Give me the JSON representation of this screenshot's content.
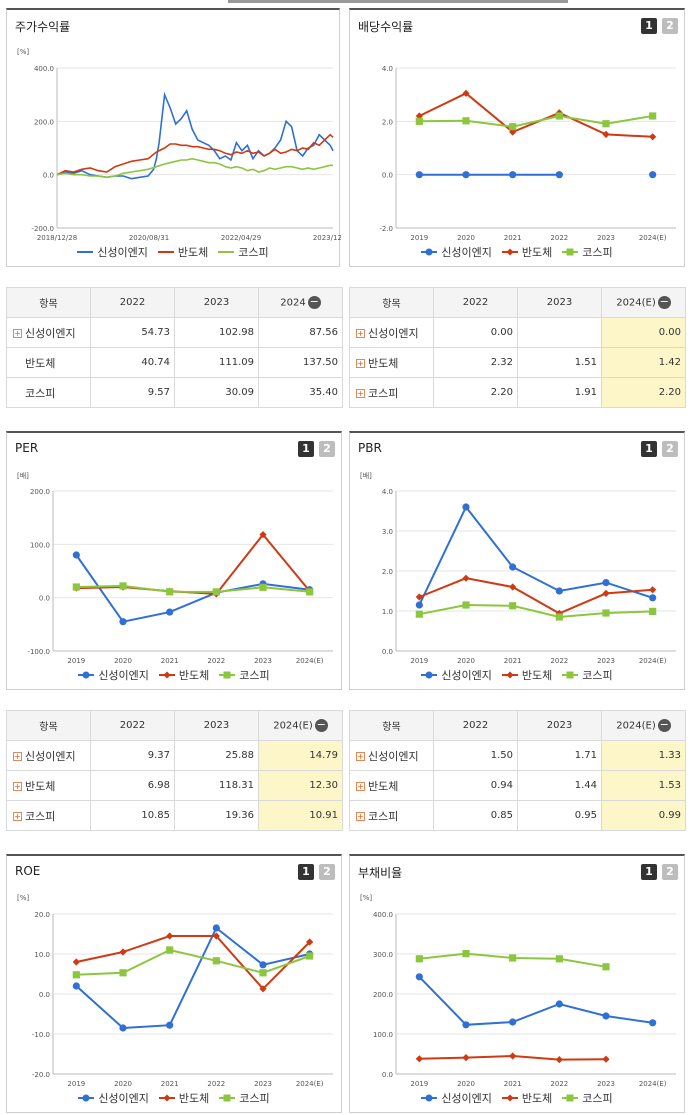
{
  "colors": {
    "blue": "#2f6fd6",
    "red": "#cf3a12",
    "green": "#8cc63f",
    "grid": "#e6e6e6"
  },
  "legend": [
    "신성이엔지",
    "반도체",
    "코스피"
  ],
  "panels": {
    "stock": {
      "title": "주가수익률",
      "tabs": [],
      "unit": "[%]",
      "chart_data": {
        "type": "line",
        "title": "주가수익률",
        "x_tick_labels": [
          "2018/12/28",
          "2020/08/31",
          "2022/04/29",
          "2023/12/28"
        ],
        "y_ticks": [
          "400.0",
          "200.0",
          "0.0",
          "-200.0"
        ],
        "ylim": [
          -200,
          400
        ],
        "x_index_range": [
          0,
          100
        ],
        "series": [
          {
            "name": "신성이엔지",
            "x": [
              0,
              3,
              6,
              9,
              12,
              15,
              18,
              21,
              24,
              27,
              30,
              33,
              35,
              36,
              37,
              39,
              41,
              43,
              45,
              47,
              49,
              51,
              53,
              55,
              57,
              59,
              61,
              63,
              65,
              67,
              69,
              71,
              73,
              75,
              77,
              79,
              81,
              83,
              85,
              87,
              89,
              91,
              93,
              95,
              97,
              99,
              100
            ],
            "y": [
              0,
              10,
              5,
              15,
              0,
              -5,
              -10,
              -5,
              -5,
              -15,
              -10,
              -5,
              20,
              60,
              120,
              300,
              250,
              190,
              210,
              240,
              170,
              130,
              120,
              110,
              90,
              60,
              70,
              55,
              120,
              90,
              110,
              60,
              90,
              70,
              80,
              100,
              130,
              200,
              180,
              90,
              70,
              100,
              110,
              150,
              130,
              110,
              90
            ]
          },
          {
            "name": "반도체",
            "x": [
              0,
              3,
              6,
              9,
              12,
              15,
              18,
              21,
              24,
              27,
              30,
              33,
              36,
              39,
              41,
              43,
              45,
              47,
              49,
              51,
              53,
              55,
              57,
              59,
              61,
              63,
              65,
              67,
              69,
              71,
              73,
              75,
              77,
              79,
              81,
              83,
              85,
              87,
              89,
              91,
              93,
              95,
              97,
              99,
              100
            ],
            "y": [
              0,
              15,
              10,
              20,
              25,
              15,
              10,
              30,
              40,
              50,
              55,
              60,
              85,
              100,
              115,
              115,
              110,
              110,
              105,
              105,
              100,
              95,
              95,
              90,
              80,
              75,
              85,
              80,
              90,
              80,
              85,
              70,
              80,
              95,
              80,
              85,
              95,
              90,
              100,
              95,
              120,
              110,
              130,
              150,
              140
            ]
          },
          {
            "name": "코스피",
            "x": [
              0,
              3,
              6,
              9,
              12,
              15,
              18,
              21,
              24,
              27,
              30,
              33,
              36,
              39,
              41,
              43,
              45,
              47,
              49,
              51,
              53,
              55,
              57,
              59,
              61,
              63,
              65,
              67,
              69,
              71,
              73,
              75,
              77,
              79,
              81,
              83,
              85,
              87,
              89,
              91,
              93,
              95,
              97,
              99,
              100
            ],
            "y": [
              0,
              5,
              0,
              0,
              -5,
              -5,
              -10,
              -5,
              5,
              10,
              15,
              20,
              30,
              40,
              45,
              50,
              55,
              55,
              60,
              55,
              50,
              45,
              45,
              40,
              30,
              25,
              30,
              25,
              15,
              20,
              10,
              15,
              25,
              20,
              25,
              30,
              30,
              25,
              20,
              25,
              20,
              25,
              30,
              35,
              35
            ]
          }
        ]
      }
    },
    "dividend": {
      "title": "배당수익률",
      "tabs": [
        "1",
        "2"
      ],
      "chart_data": {
        "type": "line",
        "title": "배당수익률",
        "categories": [
          "2019",
          "2020",
          "2021",
          "2022",
          "2023",
          "2024(E)"
        ],
        "y_ticks": [
          "4.0",
          "2.0",
          "0.0",
          "-2.0"
        ],
        "ylim": [
          -2,
          4
        ],
        "series": [
          {
            "name": "신성이엔지",
            "values": [
              0.0,
              0.0,
              0.0,
              0.0,
              null,
              0.0
            ]
          },
          {
            "name": "반도체",
            "values": [
              2.2,
              3.05,
              1.6,
              2.32,
              1.51,
              1.42
            ]
          },
          {
            "name": "코스피",
            "values": [
              2.0,
              2.02,
              1.8,
              2.2,
              1.91,
              2.2
            ]
          }
        ]
      }
    },
    "per": {
      "title": "PER",
      "tabs": [
        "1",
        "2"
      ],
      "unit": "[배]",
      "chart_data": {
        "type": "line",
        "title": "PER",
        "categories": [
          "2019",
          "2020",
          "2021",
          "2022",
          "2023",
          "2024(E)"
        ],
        "y_ticks": [
          "200.0",
          "100.0",
          "0.0",
          "-100.0"
        ],
        "ylim": [
          -100,
          200
        ],
        "series": [
          {
            "name": "신성이엔지",
            "values": [
              80,
              -45,
              -27,
              9.37,
              25.88,
              14.79
            ]
          },
          {
            "name": "반도체",
            "values": [
              18,
              20,
              12,
              6.98,
              118.31,
              12.3
            ]
          },
          {
            "name": "코스피",
            "values": [
              20,
              22,
              11,
              10.85,
              19.36,
              10.91
            ]
          }
        ]
      }
    },
    "pbr": {
      "title": "PBR",
      "tabs": [
        "1",
        "2"
      ],
      "unit": "[배]",
      "chart_data": {
        "type": "line",
        "title": "PBR",
        "categories": [
          "2019",
          "2020",
          "2021",
          "2022",
          "2023",
          "2024(E)"
        ],
        "y_ticks": [
          "4.0",
          "3.0",
          "2.0",
          "1.0",
          "0.0"
        ],
        "ylim": [
          0,
          4
        ],
        "series": [
          {
            "name": "신성이엔지",
            "values": [
              1.15,
              3.6,
              2.1,
              1.5,
              1.71,
              1.33
            ]
          },
          {
            "name": "반도체",
            "values": [
              1.35,
              1.82,
              1.6,
              0.94,
              1.44,
              1.53
            ]
          },
          {
            "name": "코스피",
            "values": [
              0.92,
              1.15,
              1.13,
              0.85,
              0.95,
              0.99
            ]
          }
        ]
      }
    },
    "roe": {
      "title": "ROE",
      "tabs": [
        "1",
        "2"
      ],
      "unit": "[%]",
      "chart_data": {
        "type": "line",
        "title": "ROE",
        "categories": [
          "2019",
          "2020",
          "2021",
          "2022",
          "2023",
          "2024(E)"
        ],
        "y_ticks": [
          "20.0",
          "10.0",
          "0.0",
          "-10.0",
          "-20.0"
        ],
        "ylim": [
          -20,
          20
        ],
        "series": [
          {
            "name": "신성이엔지",
            "values": [
              2.0,
              -8.5,
              -7.8,
              16.5,
              7.3,
              10.0
            ]
          },
          {
            "name": "반도체",
            "values": [
              8.0,
              10.5,
              14.5,
              14.5,
              1.3,
              13.0
            ]
          },
          {
            "name": "코스피",
            "values": [
              4.8,
              5.3,
              11.0,
              8.3,
              5.3,
              9.5
            ]
          }
        ]
      }
    },
    "debt": {
      "title": "부채비율",
      "tabs": [
        "1",
        "2"
      ],
      "unit": "[%]",
      "chart_data": {
        "type": "line",
        "title": "부채비율",
        "categories": [
          "2019",
          "2020",
          "2021",
          "2022",
          "2023",
          "2024(E)"
        ],
        "y_ticks": [
          "400.0",
          "300.0",
          "200.0",
          "100.0",
          "0.0"
        ],
        "ylim": [
          0,
          400
        ],
        "series": [
          {
            "name": "신성이엔지",
            "values": [
              243,
              123,
              130,
              175,
              145,
              128
            ]
          },
          {
            "name": "반도체",
            "values": [
              38,
              41,
              45,
              36,
              37,
              null
            ]
          },
          {
            "name": "코스피",
            "values": [
              288,
              301,
              290,
              288,
              268,
              null
            ]
          }
        ]
      }
    }
  },
  "tables": {
    "stock": {
      "headers": [
        "항목",
        "2022",
        "2023",
        "2024"
      ],
      "rows": [
        {
          "name": "신성이엔지",
          "cells": [
            "54.73",
            "102.98",
            "87.56"
          ]
        },
        {
          "name": "반도체",
          "cells": [
            "40.74",
            "111.09",
            "137.50"
          ]
        },
        {
          "name": "코스피",
          "cells": [
            "9.57",
            "30.09",
            "35.40"
          ]
        }
      ]
    },
    "dividend": {
      "headers": [
        "항목",
        "2022",
        "2023",
        "2024(E)"
      ],
      "rows": [
        {
          "name": "신성이엔지",
          "cells": [
            "0.00",
            "",
            "0.00"
          ]
        },
        {
          "name": "반도체",
          "cells": [
            "2.32",
            "1.51",
            "1.42"
          ]
        },
        {
          "name": "코스피",
          "cells": [
            "2.20",
            "1.91",
            "2.20"
          ]
        }
      ]
    },
    "per": {
      "headers": [
        "항목",
        "2022",
        "2023",
        "2024(E)"
      ],
      "rows": [
        {
          "name": "신성이엔지",
          "cells": [
            "9.37",
            "25.88",
            "14.79"
          ]
        },
        {
          "name": "반도체",
          "cells": [
            "6.98",
            "118.31",
            "12.30"
          ]
        },
        {
          "name": "코스피",
          "cells": [
            "10.85",
            "19.36",
            "10.91"
          ]
        }
      ]
    },
    "pbr": {
      "headers": [
        "항목",
        "2022",
        "2023",
        "2024(E)"
      ],
      "rows": [
        {
          "name": "신성이엔지",
          "cells": [
            "1.50",
            "1.71",
            "1.33"
          ]
        },
        {
          "name": "반도체",
          "cells": [
            "0.94",
            "1.44",
            "1.53"
          ]
        },
        {
          "name": "코스피",
          "cells": [
            "0.85",
            "0.95",
            "0.99"
          ]
        }
      ]
    }
  }
}
